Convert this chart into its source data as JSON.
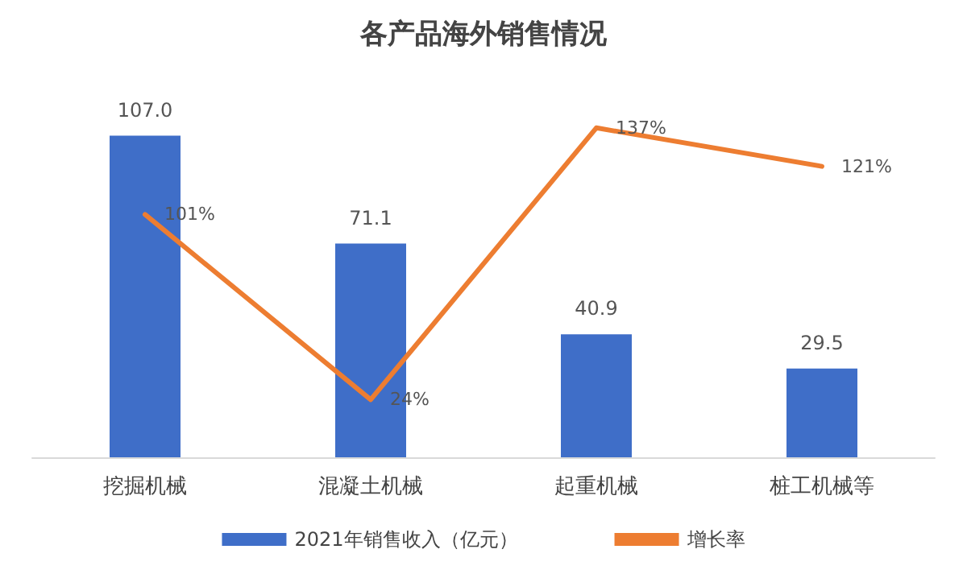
{
  "chart_data": {
    "type": "bar",
    "title": "各产品海外销售情况",
    "categories": [
      "挖掘机械",
      "混凝土机械",
      "起重机械",
      "桩工机械等"
    ],
    "series": [
      {
        "name": "2021年销售收入（亿元）",
        "color": "#3f6ec8",
        "values": [
          107.0,
          71.1,
          40.9,
          29.5
        ],
        "value_labels": [
          "107.0",
          "71.1",
          "40.9",
          "29.5"
        ]
      },
      {
        "name": "增长率",
        "type": "line",
        "axis": "y2",
        "color": "#ed7d31",
        "values": [
          101,
          24,
          137,
          121
        ],
        "value_labels": [
          "101%",
          "24%",
          "137%",
          "121%"
        ]
      }
    ],
    "marker": "none",
    "grid": false,
    "legend": "bottom"
  }
}
